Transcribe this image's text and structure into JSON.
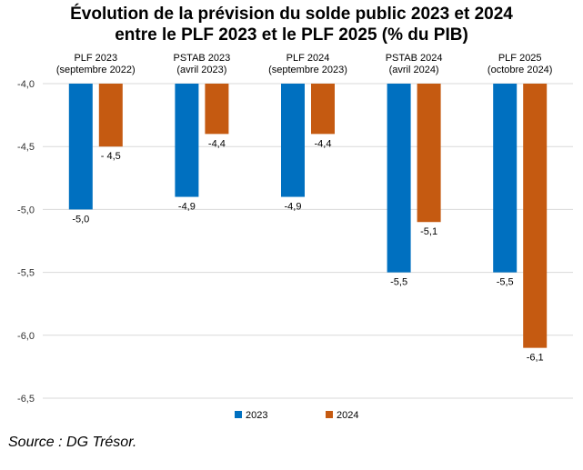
{
  "title_line1": "Évolution de la prévision du solde public 2023 et 2024",
  "title_line2": "entre le PLF 2023 et le PLF 2025 (% du PIB)",
  "source": "Source : DG Trésor.",
  "chart_data": {
    "type": "bar",
    "title": "Évolution de la prévision du solde public 2023 et 2024 entre le PLF 2023 et le PLF 2025 (% du PIB)",
    "categories": [
      {
        "line1": "PLF 2023",
        "line2": "(septembre 2022)"
      },
      {
        "line1": "PSTAB 2023",
        "line2": "(avril 2023)"
      },
      {
        "line1": "PLF 2024",
        "line2": "(septembre 2023)"
      },
      {
        "line1": "PSTAB 2024",
        "line2": "(avril 2024)"
      },
      {
        "line1": "PLF 2025",
        "line2": "(octobre 2024)"
      }
    ],
    "series": [
      {
        "name": "2023",
        "color": "#0070C0",
        "values": [
          -5.0,
          -4.9,
          -4.9,
          -5.5,
          -5.5
        ],
        "labels": [
          "-5,0",
          "-4,9",
          "-4,9",
          "-5,5",
          "-5,5"
        ]
      },
      {
        "name": "2024",
        "color": "#C55A11",
        "values": [
          -4.5,
          -4.4,
          -4.4,
          -5.1,
          -6.1
        ],
        "labels": [
          "- 4,5",
          "-4,4",
          "-4,4",
          "-5,1",
          "-6,1"
        ]
      }
    ],
    "ylim": [
      -6.5,
      -4.0
    ],
    "yticks": [
      -4.0,
      -4.5,
      -5.0,
      -5.5,
      -6.0,
      -6.5
    ],
    "ytick_labels": [
      "-4,0",
      "-4,5",
      "-5,0",
      "-5,5",
      "-6,0",
      "-6,5"
    ],
    "grid": true,
    "legend_position": "bottom",
    "xlabel": "",
    "ylabel": ""
  }
}
